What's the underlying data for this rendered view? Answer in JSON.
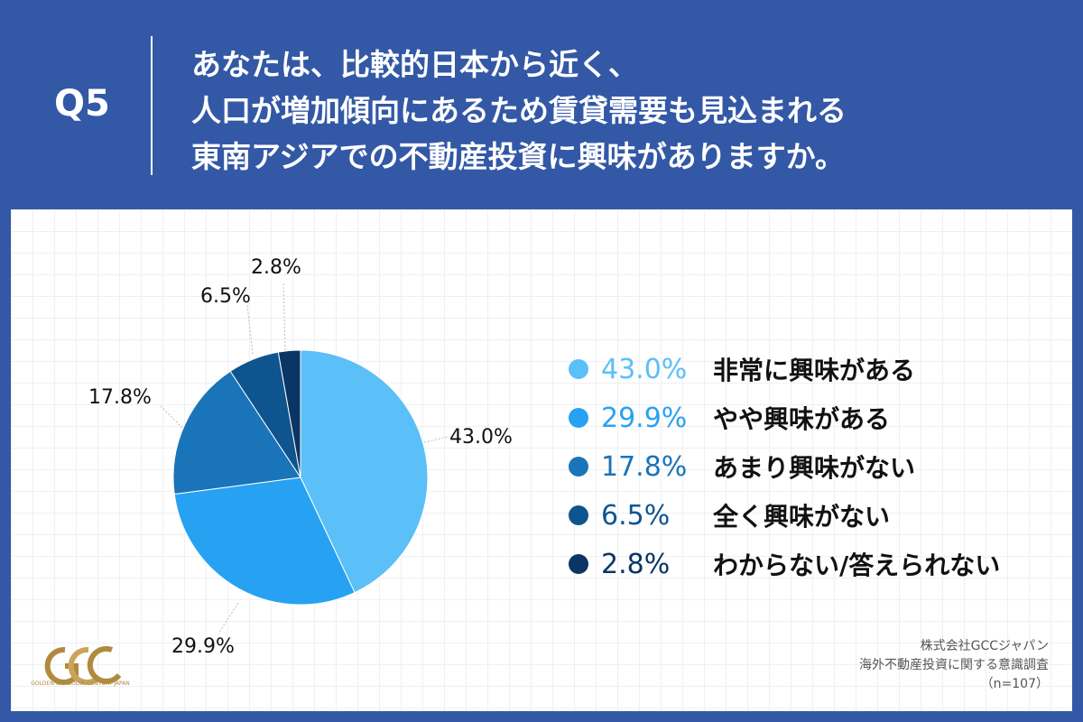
{
  "header": {
    "q_label": "Q5",
    "question_lines": [
      "あなたは、比較的日本から近く、",
      "人口が増加傾向にあるため賃貸需要も見込まれる",
      "東南アジアでの不動産投資に興味がありますか。"
    ]
  },
  "chart_data": {
    "type": "pie",
    "slices": [
      {
        "label": "非常に興味がある",
        "value": 43.0,
        "display": "43.0%",
        "color": "#5bbff8"
      },
      {
        "label": "やや興味がある",
        "value": 29.9,
        "display": "29.9%",
        "color": "#27a2f2"
      },
      {
        "label": "あまり興味がない",
        "value": 17.8,
        "display": "17.8%",
        "color": "#1a74b9"
      },
      {
        "label": "全く興味がない",
        "value": 6.5,
        "display": "6.5%",
        "color": "#0e548e"
      },
      {
        "label": "わからない/答えられない",
        "value": 2.8,
        "display": "2.8%",
        "color": "#0a3564"
      }
    ],
    "start": "12 o'clock",
    "direction": "clockwise",
    "legend_position": "right"
  },
  "logo": {
    "text": "GCC",
    "subtext": "GOLDEN CAMBODIA CENTURY JAPAN"
  },
  "source": {
    "company": "株式会社GCCジャパン",
    "survey": "海外不動産投資に関する意識調査",
    "n": "（n=107）"
  }
}
